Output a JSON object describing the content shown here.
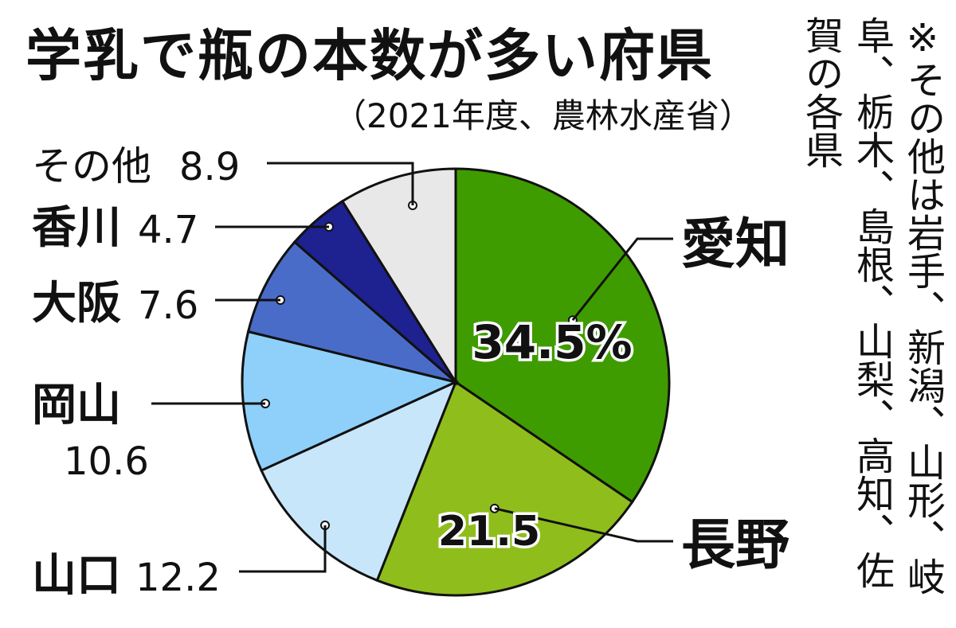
{
  "title": "学乳で瓶の本数が多い府県",
  "subtitle": "（2021年度、農林水産省）",
  "note": "※その他は岩手、新潟、山形、岐阜、栃木、島根、山梨、高知、佐賀の各県",
  "chart_data": {
    "type": "pie",
    "unit": "%",
    "start": "12 o'clock, clockwise",
    "slices": [
      {
        "label": "愛知",
        "value": 34.5,
        "value_text": "34.5%",
        "color": "#3f9c00"
      },
      {
        "label": "長野",
        "value": 21.5,
        "value_text": "21.5",
        "color": "#8fbe1c"
      },
      {
        "label": "山口",
        "value": 12.2,
        "value_text": "12.2",
        "color": "#c8e6fa"
      },
      {
        "label": "岡山",
        "value": 10.6,
        "value_text": "10.6",
        "color": "#8ed0fa"
      },
      {
        "label": "大阪",
        "value": 7.6,
        "value_text": "7.6",
        "color": "#4a6cc9"
      },
      {
        "label": "香川",
        "value": 4.7,
        "value_text": "4.7",
        "color": "#1e2190"
      },
      {
        "label": "その他",
        "value": 8.9,
        "value_text": "8.9",
        "color": "#e8e8e8"
      }
    ]
  }
}
